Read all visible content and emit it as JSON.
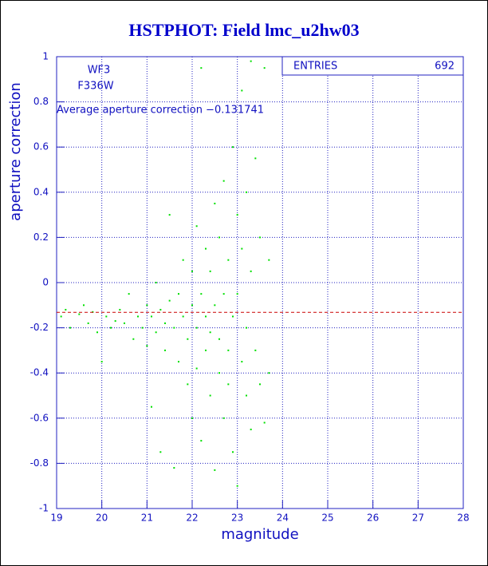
{
  "chart_data": {
    "type": "scatter",
    "title": "HSTPHOT: Field lmc_u2hw03",
    "xlabel": "magnitude",
    "ylabel": "aperture correction",
    "annotations": [
      "WF3",
      "F336W",
      "Average aperture correction −0.131741"
    ],
    "mean_line": -0.131741,
    "mean_color": "#cc0000",
    "stats": {
      "label": "ENTRIES",
      "value": 692
    },
    "color": "#00e000",
    "grid": true,
    "xlim": [
      19,
      28
    ],
    "xticks": [
      19,
      20,
      21,
      22,
      23,
      24,
      25,
      26,
      27,
      28
    ],
    "ylim": [
      -1,
      1
    ],
    "yticks": [
      -1,
      -0.8,
      -0.6,
      -0.4,
      -0.2,
      0,
      0.2,
      0.4,
      0.6,
      0.8,
      1
    ],
    "x": [
      19.1,
      19.2,
      19.3,
      19.5,
      19.6,
      19.7,
      19.8,
      19.9,
      20.0,
      20.1,
      20.2,
      20.3,
      20.4,
      20.5,
      20.6,
      20.7,
      20.8,
      20.9,
      21.0,
      21.0,
      21.1,
      21.1,
      21.2,
      21.2,
      21.3,
      21.3,
      21.4,
      21.4,
      21.5,
      21.5,
      21.6,
      21.6,
      21.7,
      21.7,
      21.8,
      21.8,
      21.9,
      21.9,
      22.0,
      22.0,
      22.0,
      22.1,
      22.1,
      22.1,
      22.2,
      22.2,
      22.2,
      22.3,
      22.3,
      22.3,
      22.4,
      22.4,
      22.4,
      22.5,
      22.5,
      22.5,
      22.6,
      22.6,
      22.6,
      22.7,
      22.7,
      22.7,
      22.8,
      22.8,
      22.8,
      22.9,
      22.9,
      22.9,
      23.0,
      23.0,
      23.0,
      23.1,
      23.1,
      23.1,
      23.2,
      23.2,
      23.2,
      23.3,
      23.3,
      23.3,
      23.4,
      23.4,
      23.5,
      23.5,
      23.6,
      23.6,
      23.7,
      23.7
    ],
    "values": [
      -0.15,
      -0.12,
      -0.2,
      -0.14,
      -0.1,
      -0.18,
      -0.13,
      -0.22,
      -0.35,
      -0.15,
      -0.2,
      -0.17,
      -0.12,
      -0.18,
      -0.05,
      -0.25,
      -0.15,
      -0.2,
      -0.1,
      -0.28,
      -0.15,
      -0.55,
      -0.22,
      0.0,
      -0.12,
      -0.75,
      -0.18,
      -0.3,
      -0.08,
      0.3,
      -0.2,
      -0.82,
      -0.05,
      -0.35,
      -0.15,
      0.1,
      -0.25,
      -0.45,
      0.05,
      -0.1,
      -0.6,
      -0.2,
      0.25,
      -0.38,
      0.95,
      -0.05,
      -0.7,
      0.15,
      -0.3,
      -0.15,
      -0.5,
      0.05,
      -0.22,
      -0.83,
      0.35,
      -0.1,
      -0.4,
      0.2,
      -0.25,
      -0.05,
      0.45,
      -0.6,
      -0.3,
      0.1,
      -0.45,
      0.6,
      -0.15,
      -0.75,
      0.3,
      -0.05,
      -0.9,
      0.85,
      -0.35,
      0.15,
      -0.5,
      0.4,
      -0.2,
      0.98,
      -0.65,
      0.05,
      0.55,
      -0.3,
      0.2,
      -0.45,
      0.95,
      -0.62,
      0.1,
      -0.4
    ]
  }
}
